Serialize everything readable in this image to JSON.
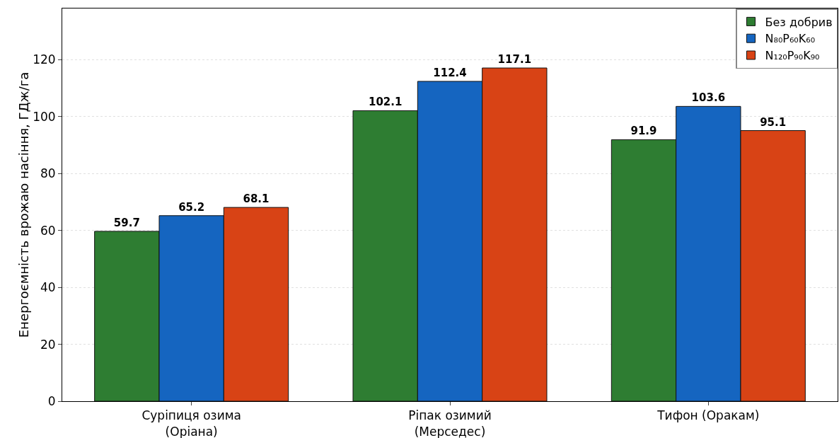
{
  "chart_data": {
    "type": "bar",
    "ylabel": "Енергоємність врожаю насіння, ГДж/га",
    "categories": [
      "Суріпиця озима\n(Оріана)",
      "Ріпак озимий\n(Мерседес)",
      "Тифон (Оракам)"
    ],
    "series": [
      {
        "name": "Без добрив",
        "color": "#2e7d32",
        "values": [
          59.7,
          102.1,
          91.9
        ]
      },
      {
        "name": "N₈₀P₆₀K₆₀",
        "color": "#1565c0",
        "values": [
          65.2,
          112.4,
          103.6
        ]
      },
      {
        "name": "N₁₂₀P₉₀K₉₀",
        "color": "#d84315",
        "values": [
          68.1,
          117.1,
          95.1
        ]
      }
    ],
    "ylim": [
      0,
      138
    ],
    "yticks": [
      0,
      20,
      40,
      60,
      80,
      100,
      120
    ],
    "grid": "y",
    "legend": "top right",
    "data_labels": true
  }
}
